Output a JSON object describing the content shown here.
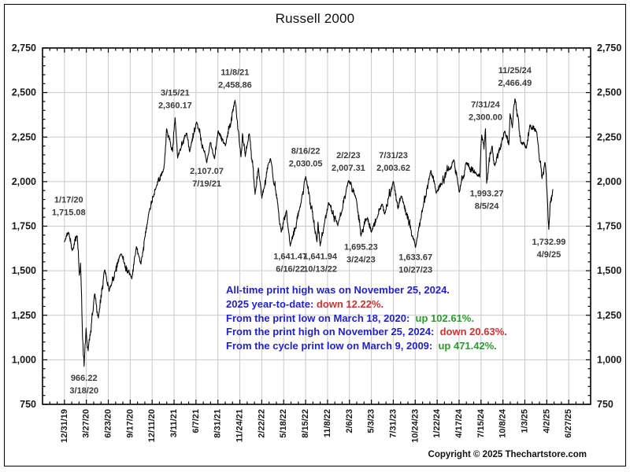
{
  "title": "Russell 2000",
  "copyright": "Copyright © 2025 Thechartstore.com",
  "colors": {
    "blue": "#2222cc",
    "red": "#cc3333",
    "green": "#2e9a2e",
    "grid": "#c9c9c9",
    "line": "#000000",
    "axis": "#000000",
    "annotation": "#3b3b3b",
    "label": "#1a1a1a"
  },
  "commentary": [
    {
      "segments": [
        {
          "text": "All-time print high was on November 25, 2024.",
          "color": "blue"
        }
      ]
    },
    {
      "segments": [
        {
          "text": "2025 year-to-date: ",
          "color": "blue"
        },
        {
          "text": "down 12.22%.",
          "color": "red"
        }
      ]
    },
    {
      "segments": [
        {
          "text": "From the print low on March 18, 2020:  ",
          "color": "blue"
        },
        {
          "text": "up 102.61%.",
          "color": "green"
        }
      ]
    },
    {
      "segments": [
        {
          "text": "From the print high on November 25, 2024:  ",
          "color": "blue"
        },
        {
          "text": "down 20.63%.",
          "color": "red"
        }
      ]
    },
    {
      "segments": [
        {
          "text": "From the cycle print low on March 9, 2009:  ",
          "color": "blue"
        },
        {
          "text": "up 471.42%.",
          "color": "green"
        }
      ]
    }
  ],
  "chart_data": {
    "type": "line",
    "title": "Russell 2000",
    "xlabel": "",
    "ylabel": "",
    "ylim": [
      750,
      2750
    ],
    "y_tick_step": 250,
    "y_minor_step": 50,
    "y_ticks": [
      750,
      1000,
      1250,
      1500,
      1750,
      2000,
      2250,
      2500,
      2750
    ],
    "grid": true,
    "legend": false,
    "x_start_iso": "2019-12-31",
    "x_end_iso": "2025-06-27",
    "x_tick_labels": [
      "12/31/19",
      "3/27/20",
      "6/23/20",
      "9/17/20",
      "12/11/20",
      "3/11/21",
      "6/7/21",
      "8/31/21",
      "11/24/21",
      "2/22/22",
      "5/18/22",
      "8/15/22",
      "11/8/22",
      "2/6/23",
      "5/3/23",
      "7/31/23",
      "10/24/23",
      "1/22/24",
      "4/17/24",
      "7/15/24",
      "10/8/24",
      "1/3/25",
      "4/2/25",
      "6/27/25"
    ],
    "annotations": [
      {
        "date": "2020-01-17",
        "lines": [
          "1/17/20",
          "1,715.08"
        ],
        "label_y": 1895
      },
      {
        "date": "2020-03-18",
        "lines": [
          "966.22",
          "3/18/20"
        ],
        "label_y": 895
      },
      {
        "date": "2021-03-15",
        "lines": [
          "3/15/21",
          "2,360.17"
        ],
        "label_y": 2497
      },
      {
        "date": "2021-07-19",
        "lines": [
          "2,107.07",
          "7/19/21"
        ],
        "label_y": 2057
      },
      {
        "date": "2021-11-08",
        "lines": [
          "11/8/21",
          "2,458.86"
        ],
        "label_y": 2612
      },
      {
        "date": "2022-06-16",
        "lines": [
          "1,641.47",
          "6/16/22"
        ],
        "label_y": 1578
      },
      {
        "date": "2022-08-16",
        "lines": [
          "8/16/22",
          "2,030.05"
        ],
        "label_y": 2170
      },
      {
        "date": "2022-10-13",
        "lines": [
          "1,641.94",
          "10/13/22"
        ],
        "label_y": 1578
      },
      {
        "date": "2023-02-02",
        "lines": [
          "2/2/23",
          "2,007.31"
        ],
        "label_y": 2146
      },
      {
        "date": "2023-03-24",
        "lines": [
          "1,695.23",
          "3/24/23"
        ],
        "label_y": 1630
      },
      {
        "date": "2023-07-31",
        "lines": [
          "7/31/23",
          "2,003.62"
        ],
        "label_y": 2146
      },
      {
        "date": "2023-10-27",
        "lines": [
          "1,633.67",
          "10/27/23"
        ],
        "label_y": 1573
      },
      {
        "date": "2024-07-31",
        "lines": [
          "7/31/24",
          "2,300.00"
        ],
        "label_y": 2430
      },
      {
        "date": "2024-08-05",
        "lines": [
          "1,993.27",
          "8/5/24"
        ],
        "label_y": 1930
      },
      {
        "date": "2024-11-25",
        "lines": [
          "11/25/24",
          "2,466.49"
        ],
        "label_y": 2622
      },
      {
        "date": "2025-04-09",
        "lines": [
          "1,732.99",
          "4/9/25"
        ],
        "label_y": 1660
      }
    ],
    "series": [
      {
        "name": "Russell 2000",
        "anchors": [
          [
            "2019-12-31",
            1662
          ],
          [
            "2020-01-17",
            1715.08
          ],
          [
            "2020-01-31",
            1614
          ],
          [
            "2020-02-20",
            1696
          ],
          [
            "2020-02-28",
            1476
          ],
          [
            "2020-03-04",
            1545
          ],
          [
            "2020-03-12",
            1122
          ],
          [
            "2020-03-18",
            966.22
          ],
          [
            "2020-03-26",
            1180
          ],
          [
            "2020-04-03",
            1052
          ],
          [
            "2020-04-29",
            1373
          ],
          [
            "2020-05-14",
            1236
          ],
          [
            "2020-06-08",
            1507
          ],
          [
            "2020-06-26",
            1387
          ],
          [
            "2020-08-11",
            1595
          ],
          [
            "2020-09-24",
            1457
          ],
          [
            "2020-10-12",
            1637
          ],
          [
            "2020-10-30",
            1538
          ],
          [
            "2020-11-30",
            1820
          ],
          [
            "2020-12-31",
            1975
          ],
          [
            "2021-01-29",
            2073
          ],
          [
            "2021-02-09",
            2299
          ],
          [
            "2021-03-05",
            2171
          ],
          [
            "2021-03-15",
            2360.17
          ],
          [
            "2021-03-25",
            2135
          ],
          [
            "2021-04-29",
            2275
          ],
          [
            "2021-05-12",
            2170
          ],
          [
            "2021-06-08",
            2337
          ],
          [
            "2021-07-19",
            2107.07
          ],
          [
            "2021-08-03",
            2223
          ],
          [
            "2021-08-19",
            2132
          ],
          [
            "2021-09-02",
            2287
          ],
          [
            "2021-10-01",
            2204
          ],
          [
            "2021-11-08",
            2458.86
          ],
          [
            "2021-12-02",
            2140
          ],
          [
            "2021-12-08",
            2271
          ],
          [
            "2021-12-19",
            2144
          ],
          [
            "2022-01-04",
            2272
          ],
          [
            "2022-01-27",
            1931
          ],
          [
            "2022-02-09",
            2080
          ],
          [
            "2022-02-23",
            1908
          ],
          [
            "2022-03-29",
            2133
          ],
          [
            "2022-04-26",
            1890
          ],
          [
            "2022-05-11",
            1718
          ],
          [
            "2022-06-01",
            1842
          ],
          [
            "2022-06-16",
            1641.47
          ],
          [
            "2022-07-29",
            1885
          ],
          [
            "2022-08-16",
            2030.05
          ],
          [
            "2022-09-30",
            1664
          ],
          [
            "2022-10-04",
            1775
          ],
          [
            "2022-10-13",
            1641.94
          ],
          [
            "2022-11-15",
            1886
          ],
          [
            "2022-12-22",
            1754
          ],
          [
            "2023-02-02",
            2007.31
          ],
          [
            "2023-03-06",
            1899
          ],
          [
            "2023-03-24",
            1695.23
          ],
          [
            "2023-04-18",
            1796
          ],
          [
            "2023-05-04",
            1718
          ],
          [
            "2023-06-16",
            1875
          ],
          [
            "2023-06-26",
            1820
          ],
          [
            "2023-07-31",
            2003.62
          ],
          [
            "2023-08-18",
            1850
          ],
          [
            "2023-09-01",
            1920
          ],
          [
            "2023-10-27",
            1633.67
          ],
          [
            "2023-12-27",
            2066
          ],
          [
            "2024-01-17",
            1936
          ],
          [
            "2024-03-28",
            2124
          ],
          [
            "2024-04-18",
            1942
          ],
          [
            "2024-05-15",
            2109
          ],
          [
            "2024-06-28",
            2036
          ],
          [
            "2024-07-09",
            2028
          ],
          [
            "2024-07-16",
            2263
          ],
          [
            "2024-07-25",
            2184
          ],
          [
            "2024-07-31",
            2300.0
          ],
          [
            "2024-08-05",
            1993.27
          ],
          [
            "2024-08-26",
            2203
          ],
          [
            "2024-09-06",
            2091
          ],
          [
            "2024-10-16",
            2286
          ],
          [
            "2024-11-01",
            2210
          ],
          [
            "2024-11-06",
            2383
          ],
          [
            "2024-11-15",
            2304
          ],
          [
            "2024-11-25",
            2466.49
          ],
          [
            "2024-12-19",
            2221
          ],
          [
            "2025-01-10",
            2189
          ],
          [
            "2025-01-23",
            2316
          ],
          [
            "2025-02-19",
            2282
          ],
          [
            "2025-03-13",
            2019
          ],
          [
            "2025-03-25",
            2109
          ],
          [
            "2025-04-03",
            1910
          ],
          [
            "2025-04-09",
            1732.99
          ],
          [
            "2025-04-14",
            1880
          ],
          [
            "2025-04-25",
            1957.62
          ]
        ]
      }
    ]
  }
}
